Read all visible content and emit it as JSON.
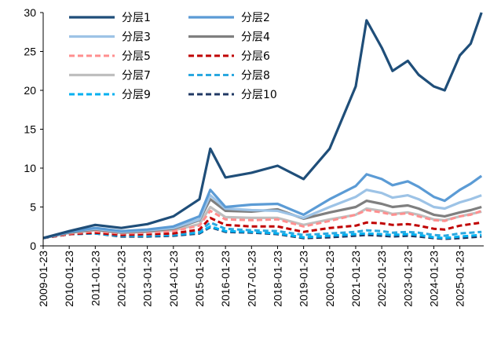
{
  "chart_data": {
    "type": "line",
    "title": "",
    "xlabel": "",
    "ylabel": "",
    "ylim": [
      0,
      30
    ],
    "yticks": [
      0,
      5,
      10,
      15,
      20,
      25,
      30
    ],
    "xlim": [
      "2009-01",
      "2025-12"
    ],
    "xtick_labels": [
      "2009-01-23",
      "2010-01-23",
      "2011-01-23",
      "2012-01-23",
      "2013-01-23",
      "2014-01-23",
      "2015-01-23",
      "2016-01-23",
      "2017-01-23",
      "2018-01-23",
      "2019-01-23",
      "2020-01-23",
      "2021-01-23",
      "2022-01-23",
      "2023-01-23",
      "2024-01-23",
      "2025-01-23"
    ],
    "grid": false,
    "legend_position": "top-left",
    "x": [
      "2009-01",
      "2010-01",
      "2011-01",
      "2012-01",
      "2013-01",
      "2014-01",
      "2015-01",
      "2015-06",
      "2016-01",
      "2017-01",
      "2018-01",
      "2019-01",
      "2020-01",
      "2021-01",
      "2021-06",
      "2022-01",
      "2022-06",
      "2023-01",
      "2023-06",
      "2024-01",
      "2024-06",
      "2025-01",
      "2025-06",
      "2025-11"
    ],
    "series": [
      {
        "name": "分层1",
        "color": "#1f4e79",
        "dash": "solid",
        "width": 3.2,
        "values": [
          1.0,
          1.9,
          2.7,
          2.3,
          2.8,
          3.8,
          6.0,
          12.5,
          8.8,
          9.4,
          10.3,
          8.6,
          12.5,
          20.5,
          29.0,
          25.5,
          22.5,
          23.8,
          22.0,
          20.5,
          20.0,
          24.5,
          26.0,
          30.0
        ]
      },
      {
        "name": "分层2",
        "color": "#5b9bd5",
        "dash": "solid",
        "width": 3.2,
        "values": [
          1.0,
          1.8,
          2.3,
          1.9,
          2.1,
          2.5,
          3.8,
          7.2,
          5.0,
          5.3,
          5.4,
          4.0,
          6.0,
          7.7,
          9.2,
          8.6,
          7.8,
          8.3,
          7.6,
          6.3,
          5.8,
          7.2,
          8.0,
          9.0
        ]
      },
      {
        "name": "分层3",
        "color": "#9dc3e6",
        "dash": "solid",
        "width": 3.2,
        "values": [
          1.0,
          1.8,
          2.2,
          1.8,
          2.0,
          2.3,
          3.4,
          6.5,
          4.8,
          4.6,
          4.5,
          3.6,
          5.0,
          6.3,
          7.2,
          6.8,
          6.2,
          6.5,
          6.0,
          5.0,
          4.8,
          5.6,
          6.0,
          6.5
        ]
      },
      {
        "name": "分层4",
        "color": "#7f7f7f",
        "dash": "solid",
        "width": 3.2,
        "values": [
          1.0,
          1.7,
          2.1,
          1.7,
          1.9,
          2.2,
          3.3,
          6.0,
          4.5,
          4.4,
          4.7,
          3.5,
          4.3,
          5.0,
          5.8,
          5.4,
          5.0,
          5.2,
          4.8,
          4.0,
          3.8,
          4.3,
          4.6,
          5.0
        ]
      },
      {
        "name": "分层5",
        "color": "#ff8f8f",
        "dash": "dash",
        "width": 3.0,
        "values": [
          1.0,
          1.6,
          1.9,
          1.6,
          1.7,
          1.9,
          2.6,
          4.5,
          3.4,
          3.3,
          3.4,
          2.5,
          3.2,
          4.0,
          4.6,
          4.3,
          4.0,
          4.2,
          3.8,
          3.3,
          3.2,
          3.8,
          4.0,
          4.5
        ]
      },
      {
        "name": "分层6",
        "color": "#c00000",
        "dash": "dash",
        "width": 3.0,
        "values": [
          1.0,
          1.5,
          1.7,
          1.4,
          1.5,
          1.6,
          2.1,
          3.6,
          2.7,
          2.5,
          2.5,
          1.8,
          2.3,
          2.6,
          3.0,
          2.9,
          2.7,
          2.8,
          2.6,
          2.2,
          2.1,
          2.6,
          2.8,
          3.0
        ]
      },
      {
        "name": "分层7",
        "color": "#bfbfbf",
        "dash": "solid",
        "width": 3.2,
        "values": [
          1.0,
          1.7,
          2.0,
          1.7,
          1.8,
          2.0,
          2.8,
          5.0,
          3.7,
          3.6,
          3.6,
          2.7,
          3.4,
          4.0,
          4.8,
          4.5,
          4.1,
          4.3,
          4.0,
          3.4,
          3.3,
          3.8,
          4.1,
          4.4
        ]
      },
      {
        "name": "分层8",
        "color": "#2aa8e0",
        "dash": "dash",
        "width": 3.0,
        "values": [
          1.0,
          1.5,
          1.7,
          1.4,
          1.4,
          1.5,
          1.9,
          3.0,
          2.2,
          2.0,
          1.9,
          1.4,
          1.6,
          1.8,
          2.0,
          1.9,
          1.7,
          1.8,
          1.7,
          1.4,
          1.3,
          1.6,
          1.7,
          1.8
        ]
      },
      {
        "name": "分层9",
        "color": "#00b0f0",
        "dash": "dash",
        "width": 3.0,
        "values": [
          1.0,
          1.5,
          1.6,
          1.3,
          1.3,
          1.4,
          1.7,
          2.5,
          1.9,
          1.8,
          1.6,
          1.1,
          1.3,
          1.5,
          1.6,
          1.5,
          1.4,
          1.5,
          1.4,
          1.1,
          1.0,
          1.2,
          1.3,
          1.4
        ]
      },
      {
        "name": "分层10",
        "color": "#203864",
        "dash": "dash",
        "width": 3.0,
        "values": [
          1.0,
          1.5,
          1.6,
          1.2,
          1.2,
          1.3,
          1.6,
          2.4,
          1.8,
          1.7,
          1.5,
          1.0,
          1.1,
          1.3,
          1.4,
          1.3,
          1.2,
          1.3,
          1.2,
          1.0,
          0.9,
          1.0,
          1.1,
          1.2
        ]
      }
    ]
  }
}
